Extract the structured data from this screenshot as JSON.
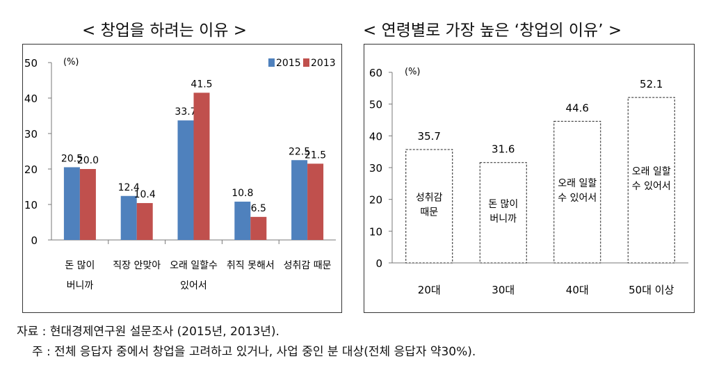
{
  "left_title": "< 창업을 하려는 이유 >",
  "right_title": "< 연령별로 가장 높은 ‘창업의 이유’ >",
  "source_note": "자료 : 현대경제연구원 설문조사 (2015년, 2013년).",
  "footnote": "주 : 전체 응답자 중에서 창업을 고려하고 있거나, 사업 중인 분 대상(전체 응답자 약30%).",
  "chart_data": [
    {
      "type": "bar",
      "unit_label": "(%)",
      "ylim": [
        0,
        50
      ],
      "yticks": [
        "0",
        "10",
        "20",
        "30",
        "40",
        "50"
      ],
      "categories": [
        [
          "돈 많이",
          "버니까"
        ],
        [
          "직장 안맞아"
        ],
        [
          "오래 일할수",
          "있어서"
        ],
        [
          "취직 못해서"
        ],
        [
          "성취감 때문"
        ]
      ],
      "series": [
        {
          "name": "2015",
          "color": "#4f81bd",
          "values": [
            20.5,
            12.4,
            33.7,
            10.8,
            22.5
          ],
          "labels": [
            "20.5",
            "12.4",
            "33.7",
            "10.8",
            "22.5"
          ]
        },
        {
          "name": "2013",
          "color": "#c0504d",
          "values": [
            20.0,
            10.4,
            41.5,
            6.5,
            21.5
          ],
          "labels": [
            "20.0",
            "10.4",
            "41.5",
            "6.5",
            "21.5"
          ]
        }
      ],
      "legend_position": "top-right"
    },
    {
      "type": "bar",
      "unit_label": "(%)",
      "ylim": [
        0,
        60
      ],
      "yticks": [
        "0",
        "10",
        "20",
        "30",
        "40",
        "50",
        "60"
      ],
      "categories": [
        "20대",
        "30대",
        "40대",
        "50대 이상"
      ],
      "values": [
        35.7,
        31.6,
        44.6,
        52.1
      ],
      "labels": [
        "35.7",
        "31.6",
        "44.6",
        "52.1"
      ],
      "bar_text": [
        [
          "성취감",
          "때문"
        ],
        [
          "돈 많이",
          "버니까"
        ],
        [
          "오래 일할",
          "수 있어서"
        ],
        [
          "오래 일할",
          "수 있어서"
        ]
      ]
    }
  ]
}
